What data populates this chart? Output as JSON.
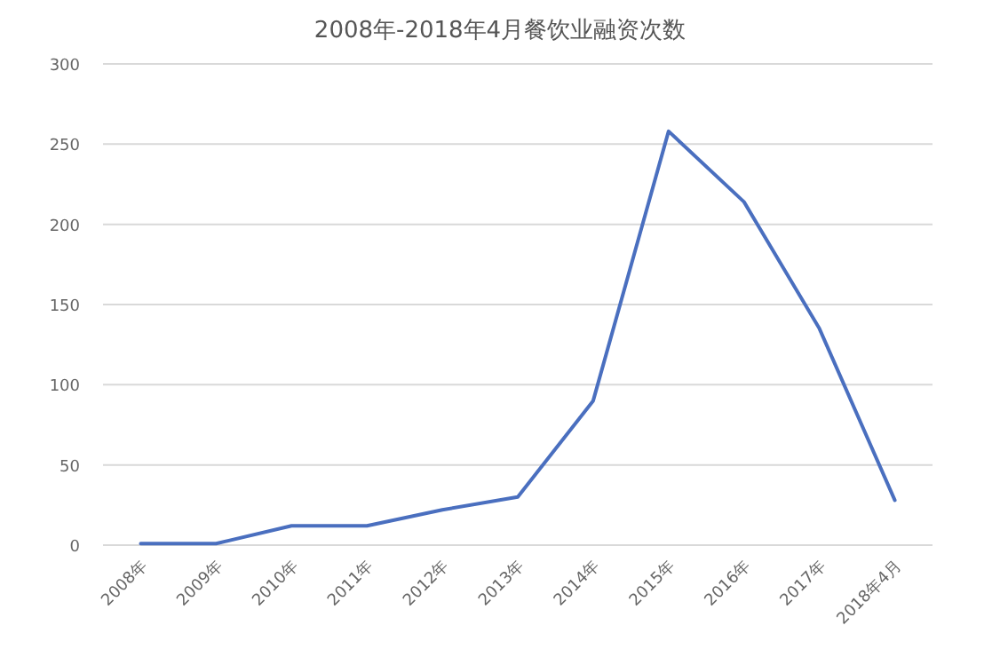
{
  "chart_data": {
    "type": "line",
    "title": "2008年-2018年4月餐饮业融资次数",
    "categories": [
      "2008年",
      "2009年",
      "2010年",
      "2011年",
      "2012年",
      "2013年",
      "2014年",
      "2015年",
      "2016年",
      "2017年",
      "2018年4月"
    ],
    "series": [
      {
        "color": "#4a6fbf",
        "values": [
          1,
          1,
          12,
          12,
          22,
          30,
          90,
          258,
          214,
          135,
          28
        ]
      }
    ],
    "ylim": [
      0,
      300
    ],
    "yticks": [
      0,
      50,
      100,
      150,
      200,
      250,
      300
    ],
    "grid": "y",
    "marker": "none",
    "line_style": "solid"
  }
}
